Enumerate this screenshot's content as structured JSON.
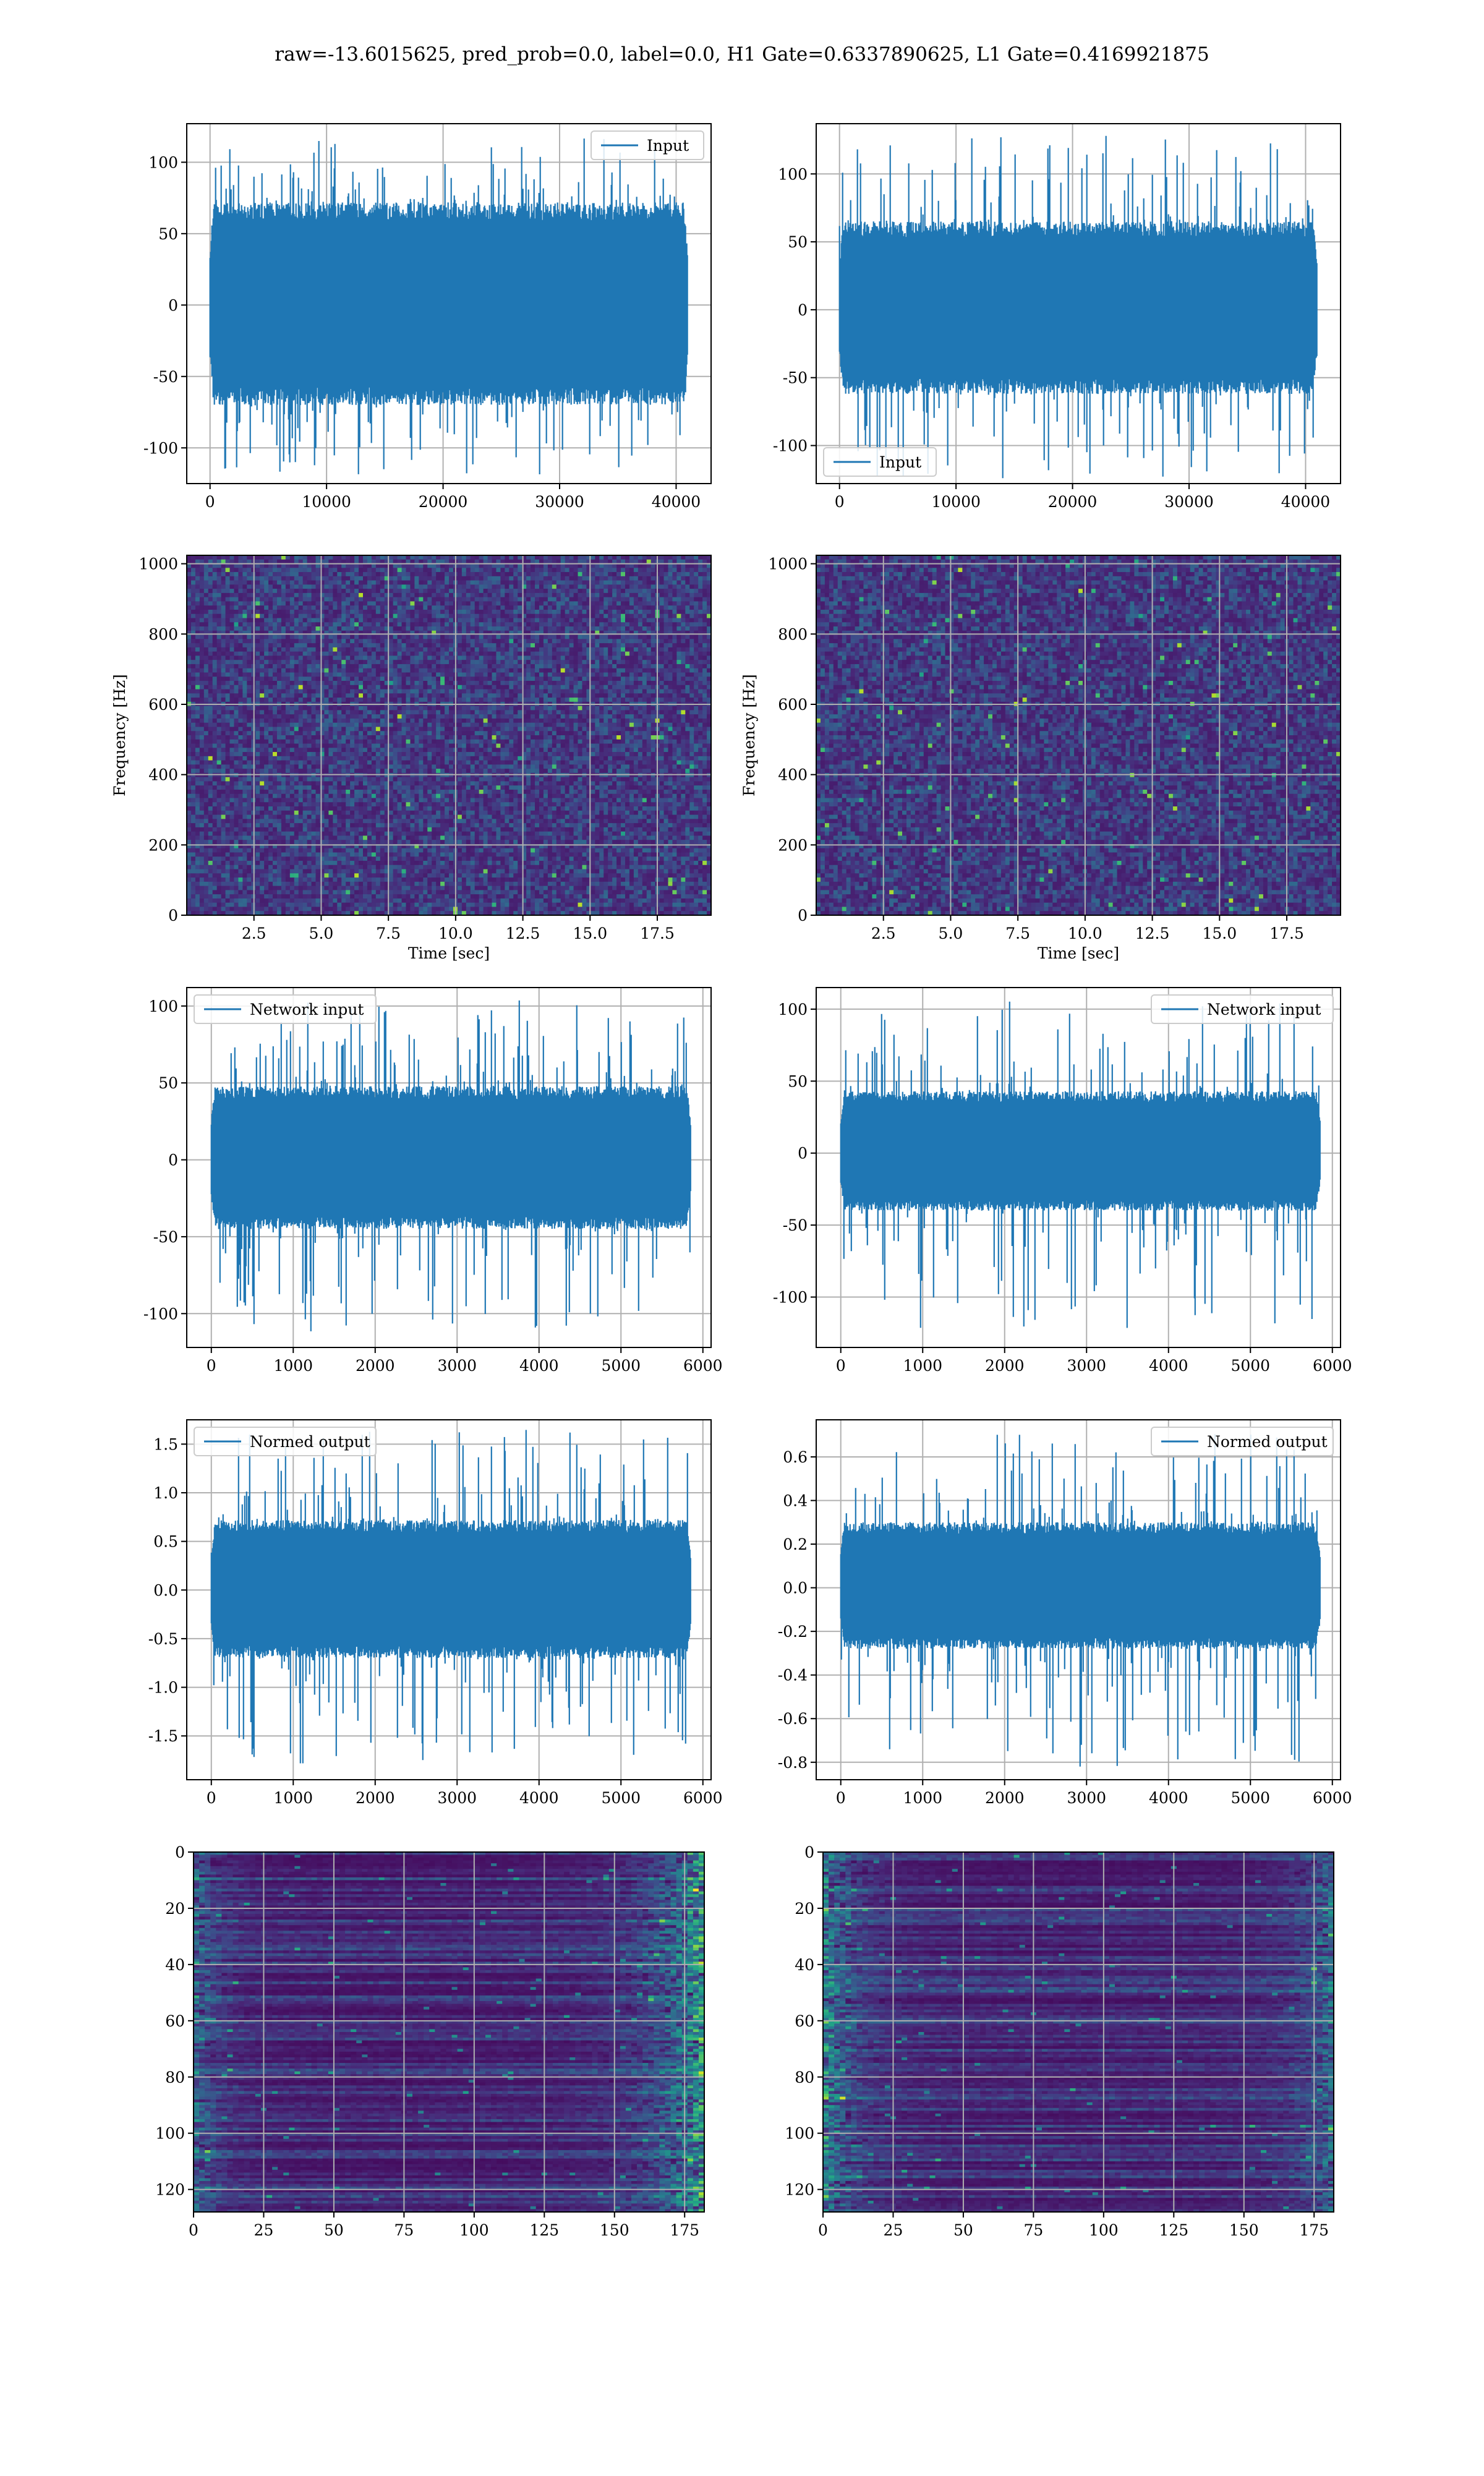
{
  "figure": {
    "suptitle": "raw=-13.6015625, pred_prob=0.0, label=0.0, H1 Gate=0.6337890625, L1 Gate=0.4169921875"
  },
  "colors": {
    "line": "#1f77b4",
    "grid": "#b0b0b0",
    "viridis": [
      "#440154",
      "#482878",
      "#3e4989",
      "#31688e",
      "#26828e",
      "#1f9e89",
      "#35b779",
      "#6ece58",
      "#b5de2b",
      "#fde725"
    ]
  },
  "chart_data": [
    {
      "id": "p1",
      "type": "line",
      "title": "",
      "xlabel": "",
      "ylabel": "",
      "legend": "Input",
      "legend_loc": "top-right",
      "xlim": [
        -2000,
        43000
      ],
      "ylim": [
        -125,
        127
      ],
      "xticks": [
        0,
        10000,
        20000,
        30000,
        40000
      ],
      "yticks": [
        -100,
        -50,
        0,
        50,
        100
      ],
      "series": [
        {
          "name": "Input",
          "n_samples": 40960,
          "x_range": [
            0,
            40960
          ],
          "envelope_y": [
            -70,
            72
          ],
          "peak_y": [
            -120,
            117
          ]
        }
      ],
      "grid": true
    },
    {
      "id": "p2",
      "type": "line",
      "title": "",
      "xlabel": "",
      "ylabel": "",
      "legend": "Input",
      "legend_loc": "bottom-left",
      "xlim": [
        -2000,
        43000
      ],
      "ylim": [
        -128,
        137
      ],
      "xticks": [
        0,
        10000,
        20000,
        30000,
        40000
      ],
      "yticks": [
        -100,
        -50,
        0,
        50,
        100
      ],
      "series": [
        {
          "name": "Input",
          "n_samples": 40960,
          "x_range": [
            0,
            40960
          ],
          "envelope_y": [
            -62,
            65
          ],
          "peak_y": [
            -125,
            129
          ]
        }
      ],
      "grid": true
    },
    {
      "id": "p3",
      "type": "heatmap",
      "title": "",
      "xlabel": "Time [sec]",
      "ylabel": "Frequency [Hz]",
      "xlim": [
        0,
        19.5
      ],
      "ylim": [
        0,
        1024
      ],
      "xticks": [
        2.5,
        5.0,
        7.5,
        10.0,
        12.5,
        15.0,
        17.5
      ],
      "yticks": [
        0,
        200,
        400,
        600,
        800,
        1000
      ],
      "colormap": "viridis",
      "grid": true
    },
    {
      "id": "p4",
      "type": "heatmap",
      "title": "",
      "xlabel": "Time [sec]",
      "ylabel": "Frequency [Hz]",
      "xlim": [
        0,
        19.5
      ],
      "ylim": [
        0,
        1024
      ],
      "xticks": [
        2.5,
        5.0,
        7.5,
        10.0,
        12.5,
        15.0,
        17.5
      ],
      "yticks": [
        0,
        200,
        400,
        600,
        800,
        1000
      ],
      "colormap": "viridis",
      "grid": true
    },
    {
      "id": "p5",
      "type": "line",
      "title": "",
      "xlabel": "",
      "ylabel": "",
      "legend": "Network input",
      "legend_loc": "top-left",
      "xlim": [
        -300,
        6100
      ],
      "ylim": [
        -122,
        112
      ],
      "xticks": [
        0,
        1000,
        2000,
        3000,
        4000,
        5000,
        6000
      ],
      "yticks": [
        -100,
        -50,
        0,
        50,
        100
      ],
      "series": [
        {
          "name": "Network input",
          "n_samples": 5850,
          "x_range": [
            0,
            5850
          ],
          "envelope_y": [
            -45,
            48
          ],
          "peak_y": [
            -112,
            104
          ]
        }
      ],
      "grid": true
    },
    {
      "id": "p6",
      "type": "line",
      "title": "",
      "xlabel": "",
      "ylabel": "",
      "legend": "Network input",
      "legend_loc": "top-right",
      "xlim": [
        -300,
        6100
      ],
      "ylim": [
        -135,
        115
      ],
      "xticks": [
        0,
        1000,
        2000,
        3000,
        4000,
        5000,
        6000
      ],
      "yticks": [
        -100,
        -50,
        0,
        50,
        100
      ],
      "series": [
        {
          "name": "Network input",
          "n_samples": 5850,
          "x_range": [
            0,
            5850
          ],
          "envelope_y": [
            -40,
            43
          ],
          "peak_y": [
            -122,
            106
          ]
        }
      ],
      "grid": true
    },
    {
      "id": "p7",
      "type": "line",
      "title": "",
      "xlabel": "",
      "ylabel": "",
      "legend": "Normed output",
      "legend_loc": "top-left",
      "xlim": [
        -300,
        6100
      ],
      "ylim": [
        -1.95,
        1.75
      ],
      "xticks": [
        0,
        1000,
        2000,
        3000,
        4000,
        5000,
        6000
      ],
      "yticks": [
        -1.5,
        -1.0,
        -0.5,
        0.0,
        0.5,
        1.0,
        1.5
      ],
      "series": [
        {
          "name": "Normed output",
          "n_samples": 5850,
          "x_range": [
            0,
            5850
          ],
          "envelope_y": [
            -0.7,
            0.72
          ],
          "peak_y": [
            -1.8,
            1.65
          ]
        }
      ],
      "grid": true
    },
    {
      "id": "p8",
      "type": "line",
      "title": "",
      "xlabel": "",
      "ylabel": "",
      "legend": "Normed output",
      "legend_loc": "top-right",
      "xlim": [
        -300,
        6100
      ],
      "ylim": [
        -0.88,
        0.77
      ],
      "xticks": [
        0,
        1000,
        2000,
        3000,
        4000,
        5000,
        6000
      ],
      "yticks": [
        -0.8,
        -0.6,
        -0.4,
        -0.2,
        0.0,
        0.2,
        0.4,
        0.6
      ],
      "series": [
        {
          "name": "Normed output",
          "n_samples": 5850,
          "x_range": [
            0,
            5850
          ],
          "envelope_y": [
            -0.28,
            0.3
          ],
          "peak_y": [
            -0.82,
            0.71
          ]
        }
      ],
      "grid": true
    },
    {
      "id": "p9",
      "type": "heatmap",
      "title": "",
      "xlabel": "",
      "ylabel": "",
      "xlim": [
        0,
        182
      ],
      "ylim": [
        128,
        0
      ],
      "xticks": [
        0,
        25,
        50,
        75,
        100,
        125,
        150,
        175
      ],
      "yticks": [
        0,
        20,
        40,
        60,
        80,
        100,
        120
      ],
      "colormap": "viridis",
      "grid": true
    },
    {
      "id": "p10",
      "type": "heatmap",
      "title": "",
      "xlabel": "",
      "ylabel": "",
      "xlim": [
        0,
        182
      ],
      "ylim": [
        128,
        0
      ],
      "xticks": [
        0,
        25,
        50,
        75,
        100,
        125,
        150,
        175
      ],
      "yticks": [
        0,
        20,
        40,
        60,
        80,
        100,
        120
      ],
      "colormap": "viridis",
      "grid": true
    }
  ]
}
